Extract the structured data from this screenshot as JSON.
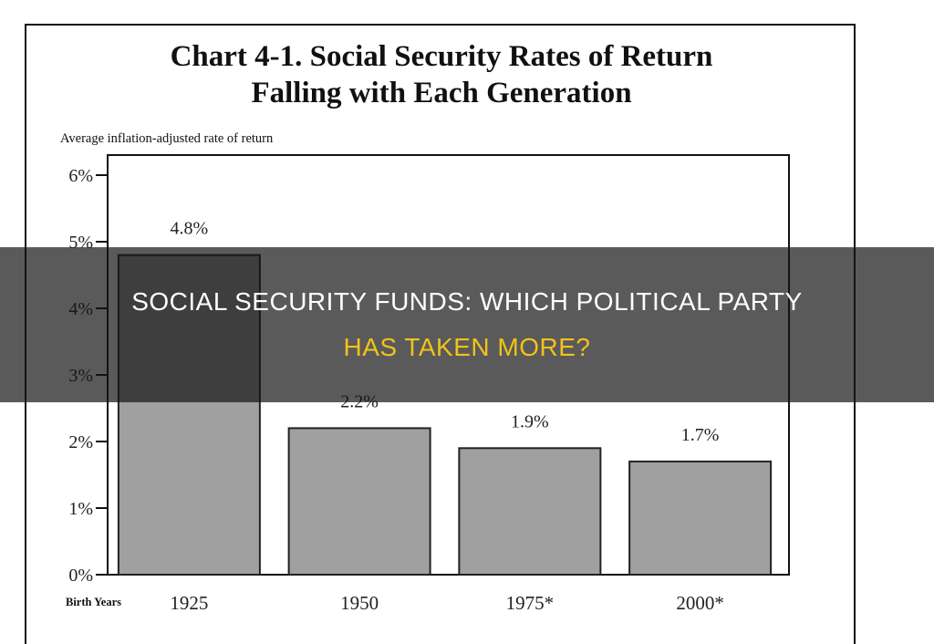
{
  "chart_data": {
    "type": "bar",
    "title": "Chart 4-1.  Social Security Rates of Return Falling with Each Generation",
    "title_lines": [
      "Chart 4-1.  Social Security Rates of Return",
      "Falling with Each Generation"
    ],
    "ylabel": "Average inflation-adjusted rate of return",
    "xlabel": "Birth Years",
    "categories": [
      "1925",
      "1950",
      "1975*",
      "2000*"
    ],
    "values": [
      4.8,
      2.2,
      1.9,
      1.7
    ],
    "data_labels": [
      "4.8%",
      "2.2%",
      "1.9%",
      "1.7%"
    ],
    "ylim": [
      0,
      6
    ],
    "yticks": [
      "0%",
      "1%",
      "2%",
      "3%",
      "4%",
      "5%",
      "6%"
    ],
    "grid": false,
    "bar_color": "#a0a0a0"
  },
  "banner": {
    "line1": "SOCIAL SECURITY FUNDS: WHICH POLITICAL PARTY",
    "line2": "HAS TAKEN MORE?",
    "text_color": "#ffffff",
    "accent_color": "#f2c21a"
  }
}
